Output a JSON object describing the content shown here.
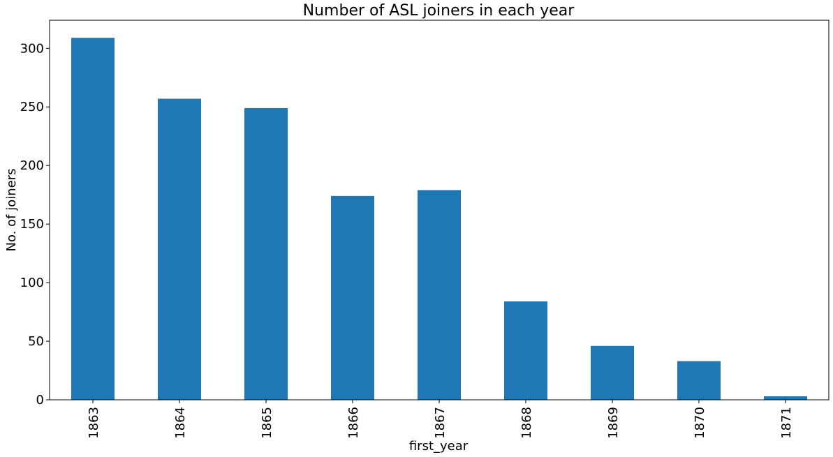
{
  "chart_data": {
    "type": "bar",
    "title": "Number of ASL joiners in each year",
    "xlabel": "first_year",
    "ylabel": "No. of joiners",
    "categories": [
      "1863",
      "1864",
      "1865",
      "1866",
      "1867",
      "1868",
      "1869",
      "1870",
      "1871"
    ],
    "values": [
      309,
      257,
      249,
      174,
      179,
      84,
      46,
      33,
      3
    ],
    "ylim": [
      0,
      324
    ],
    "yticks": [
      0,
      50,
      100,
      150,
      200,
      250,
      300
    ],
    "bar_color": "#1f77b4",
    "grid": false,
    "legend": "none",
    "xtick_rotation": "vertical"
  }
}
